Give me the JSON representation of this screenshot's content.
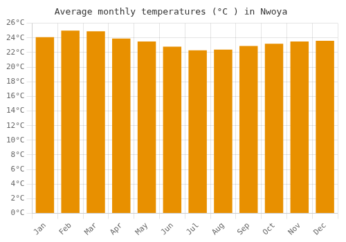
{
  "chart_data": {
    "type": "bar",
    "title": "Average monthly temperatures (°C ) in Nwoya",
    "categories": [
      "Jan",
      "Feb",
      "Mar",
      "Apr",
      "May",
      "Jun",
      "Jul",
      "Aug",
      "Sep",
      "Oct",
      "Nov",
      "Dec"
    ],
    "values": [
      24.1,
      25.0,
      24.9,
      23.9,
      23.5,
      22.8,
      22.3,
      22.4,
      22.9,
      23.2,
      23.5,
      23.6
    ],
    "color": "#E89000",
    "ylim": [
      0,
      26
    ],
    "yticks": [
      {
        "value": 0,
        "label": "0°C"
      },
      {
        "value": 2,
        "label": "2°C"
      },
      {
        "value": 4,
        "label": "4°C"
      },
      {
        "value": 6,
        "label": "6°C"
      },
      {
        "value": 8,
        "label": "8°C"
      },
      {
        "value": 10,
        "label": "10°C"
      },
      {
        "value": 12,
        "label": "12°C"
      },
      {
        "value": 14,
        "label": "14°C"
      },
      {
        "value": 16,
        "label": "16°C"
      },
      {
        "value": 18,
        "label": "18°C"
      },
      {
        "value": 20,
        "label": "20°C"
      },
      {
        "value": 22,
        "label": "22°C"
      },
      {
        "value": 24,
        "label": "24°C"
      },
      {
        "value": 26,
        "label": "26°C"
      }
    ],
    "grid": true
  }
}
